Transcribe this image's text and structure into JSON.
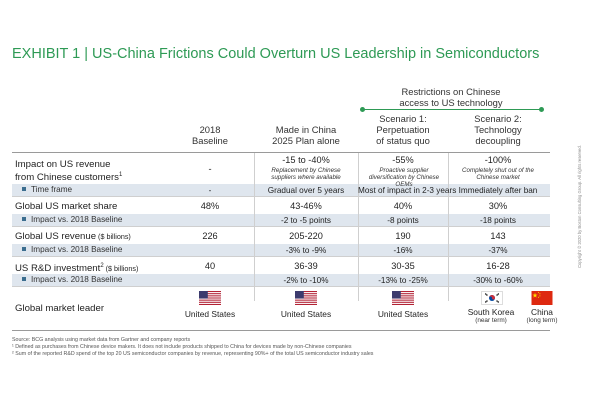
{
  "title": "EXHIBIT 1 | US-China Frictions Could Overturn US Leadership in Semiconductors",
  "restrictions_header": [
    "Restrictions on Chinese",
    "access to US technology"
  ],
  "columns": [
    {
      "line1": "2018",
      "line2": "Baseline",
      "line3": ""
    },
    {
      "line1": "Made in China",
      "line2": "2025 Plan alone",
      "line3": ""
    },
    {
      "line1": "Scenario 1:",
      "line2": "Perpetuation",
      "line3": "of status quo"
    },
    {
      "line1": "Scenario 2:",
      "line2": "Technology",
      "line3": "decoupling"
    }
  ],
  "rows": {
    "impact_revenue": {
      "label_line1": "Impact on US revenue",
      "label_line2": "from Chinese customers",
      "label_sup": "1",
      "values": [
        "-",
        "-15 to -40%",
        "-55%",
        "-100%"
      ],
      "notes": [
        "",
        "Replacement by Chinese suppliers where available",
        "Proactive supplier diversification by Chinese OEMs",
        "Completely shut out of the Chinese market"
      ]
    },
    "time_frame": {
      "label": "Time frame",
      "values": [
        "-",
        "Gradual over 5 years",
        "Most of impact in 2-3 years",
        "Immediately after ban"
      ]
    },
    "market_share": {
      "label": "Global US market share",
      "values": [
        "48%",
        "43-46%",
        "40%",
        "30%"
      ]
    },
    "market_share_impact": {
      "label": "Impact vs. 2018 Baseline",
      "values": [
        "",
        "-2 to -5 points",
        "-8 points",
        "-18 points"
      ]
    },
    "revenue": {
      "label": "Global US revenue",
      "unit": " ($ billions)",
      "values": [
        "226",
        "205-220",
        "190",
        "143"
      ]
    },
    "revenue_impact": {
      "label": "Impact vs. 2018 Baseline",
      "values": [
        "",
        "-3% to -9%",
        "-16%",
        "-37%"
      ]
    },
    "rd": {
      "label": "US R&D investment",
      "label_sup": "2",
      "unit": " ($ billions)",
      "values": [
        "40",
        "36-39",
        "30-35",
        "16-28"
      ]
    },
    "rd_impact": {
      "label": "Impact vs. 2018 Baseline",
      "values": [
        "",
        "-2% to -10%",
        "-13% to -25%",
        "-30% to -60%"
      ]
    },
    "leader": {
      "label": "Global market leader",
      "values": [
        "United States",
        "United States",
        "United States"
      ],
      "scenario2": [
        {
          "name": "South Korea",
          "qualifier": "(near term)",
          "flag": "south-korea"
        },
        {
          "name": "China",
          "qualifier": "(long term)",
          "flag": "china"
        }
      ]
    }
  },
  "footnotes": [
    "Source: BCG analysis using market data from Gartner and company reports",
    "¹ Defined as purchases from Chinese device makers. It does not include products shipped to China for devices made by non-Chinese companies",
    "² Sum of the reported R&D spend of the top 20 US semiconductor companies by revenue, representing 90%+ of the total US semiconductor industry sales"
  ],
  "copyright": "Copyright © 2020 by Boston Consulting Group. All rights reserved.",
  "colors": {
    "accent_green": "#2e9a55",
    "band_blue": "#dfe6ee",
    "us_red": "#b22234",
    "us_blue": "#3c3b6e",
    "china_red": "#de2910",
    "china_yellow": "#ffde00",
    "korea_red": "#cd2e3a",
    "korea_blue": "#0047a0"
  }
}
